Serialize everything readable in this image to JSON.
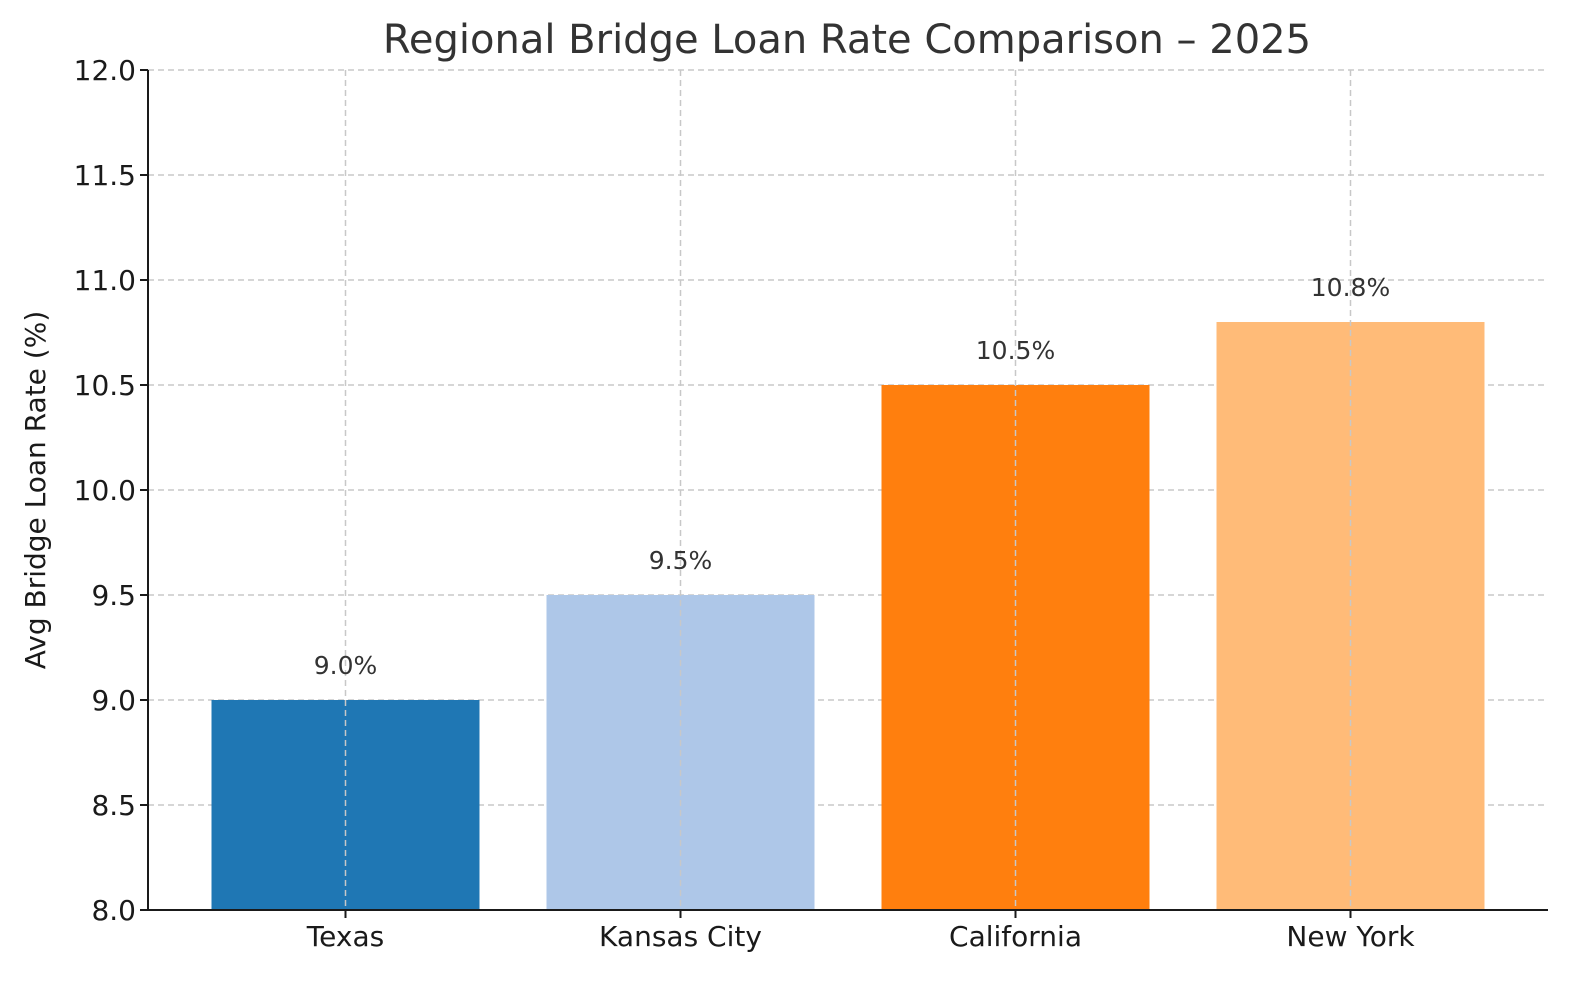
{
  "chart_data": {
    "type": "bar",
    "title": "Regional Bridge Loan Rate Comparison – 2025",
    "xlabel": "",
    "ylabel": "Avg Bridge Loan Rate (%)",
    "categories": [
      "Texas",
      "Kansas City",
      "California",
      "New York"
    ],
    "values": [
      9.0,
      9.5,
      10.5,
      10.8
    ],
    "value_labels": [
      "9.0%",
      "9.5%",
      "10.5%",
      "10.8%"
    ],
    "colors": [
      "#1f77b4",
      "#aec7e8",
      "#ff7f0e",
      "#ffbb78"
    ],
    "ylim": [
      8.0,
      12.0
    ],
    "yticks": [
      8.0,
      8.5,
      9.0,
      9.5,
      10.0,
      10.5,
      11.0,
      11.5,
      12.0
    ],
    "ytick_labels": [
      "8.0",
      "8.5",
      "9.0",
      "9.5",
      "10.0",
      "10.5",
      "11.0",
      "11.5",
      "12.0"
    ],
    "grid": true
  }
}
